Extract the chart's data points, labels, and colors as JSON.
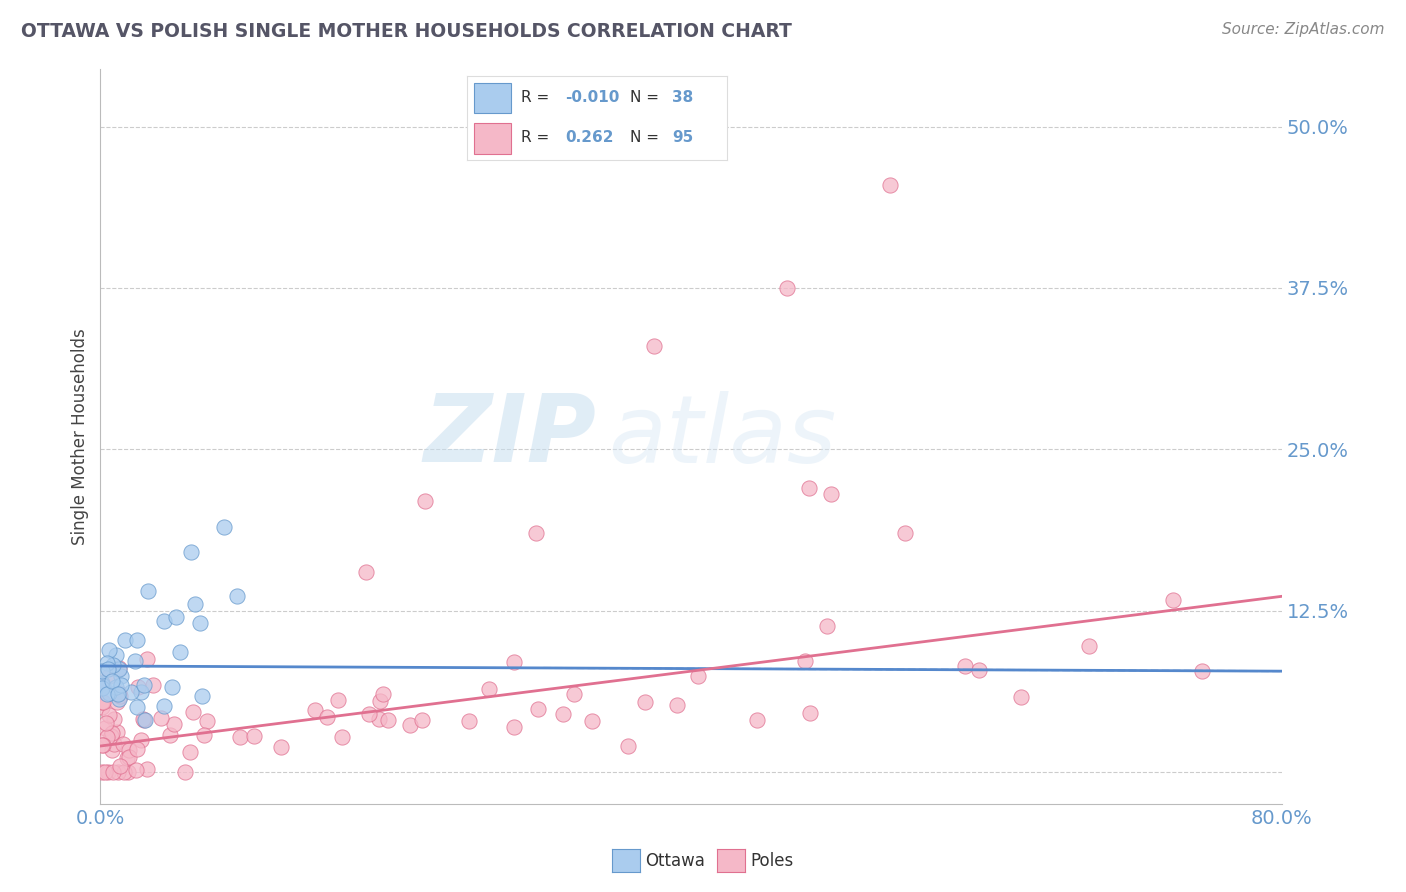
{
  "title": "OTTAWA VS POLISH SINGLE MOTHER HOUSEHOLDS CORRELATION CHART",
  "source_text": "Source: ZipAtlas.com",
  "ylabel": "Single Mother Households",
  "xlim": [
    0.0,
    0.8
  ],
  "ylim": [
    -0.025,
    0.545
  ],
  "ytick_positions": [
    0.0,
    0.125,
    0.25,
    0.375,
    0.5
  ],
  "ytick_labels": [
    "",
    "12.5%",
    "25.0%",
    "37.5%",
    "50.0%"
  ],
  "ottawa_R": -0.01,
  "ottawa_N": 38,
  "poles_R": 0.262,
  "poles_N": 95,
  "legend_label_ottawa": "Ottawa",
  "legend_label_poles": "Poles",
  "watermark_zip": "ZIP",
  "watermark_atlas": "atlas",
  "background_color": "#ffffff",
  "grid_color": "#cccccc",
  "ottawa_color": "#aaccee",
  "ottawa_edge_color": "#6699cc",
  "ottawa_line_color": "#5588cc",
  "poles_color": "#f5b8c8",
  "poles_edge_color": "#e07090",
  "poles_line_color": "#e07090",
  "title_color": "#555566",
  "source_color": "#888888",
  "tick_color": "#6699cc",
  "ylabel_color": "#444444"
}
